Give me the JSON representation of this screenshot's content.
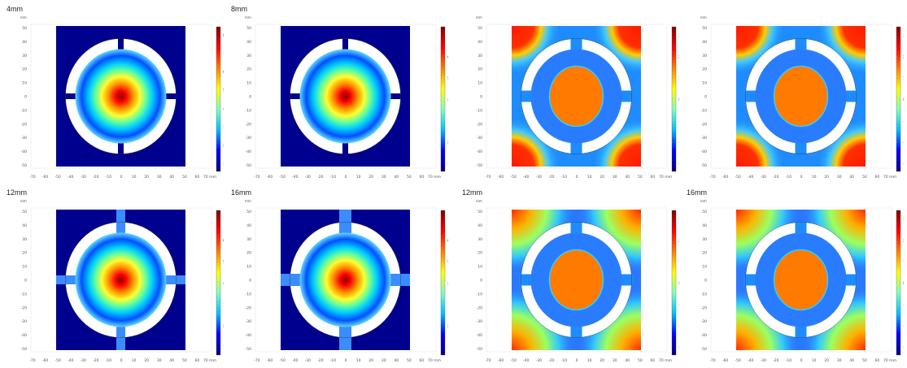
{
  "figure": {
    "panels": [
      {
        "title": "4mm",
        "field": "gaussian",
        "ring_extra": 0,
        "cb_ticks": [
          "8",
          "7",
          "6",
          "5",
          "4",
          "3",
          "2",
          "1"
        ],
        "unit": "mm",
        "x_ticks": [
          "-70",
          "-60",
          "-50",
          "-40",
          "-30",
          "-20",
          "-10",
          "0",
          "10",
          "20",
          "30",
          "40",
          "50",
          "60",
          "70"
        ],
        "y_ticks": [
          "50",
          "40",
          "30",
          "20",
          "10",
          "0",
          "-10",
          "-20",
          "-30",
          "-40",
          "-50"
        ]
      },
      {
        "title": "8mm",
        "field": "gaussian",
        "ring_extra": 0,
        "cb_ticks": [
          "7",
          "6",
          "5",
          "4",
          "3",
          "2",
          "1"
        ],
        "unit": "mm",
        "x_ticks": [
          "-70",
          "-60",
          "-50",
          "-40",
          "-30",
          "-20",
          "-10",
          "0",
          "10",
          "20",
          "30",
          "40",
          "50",
          "60",
          "70"
        ],
        "y_ticks": [
          "50",
          "40",
          "30",
          "20",
          "10",
          "0",
          "-10",
          "-20",
          "-30",
          "-40",
          "-50"
        ]
      },
      {
        "title": "",
        "field": "phase",
        "ring_extra": 0,
        "cb_ticks": [
          "3",
          "2",
          "1",
          "0",
          "-1",
          "-2",
          "-3"
        ],
        "unit": "mm",
        "x_ticks": [
          "-70",
          "-60",
          "-50",
          "-40",
          "-30",
          "-20",
          "-10",
          "0",
          "10",
          "20",
          "30",
          "40",
          "50",
          "60",
          "70"
        ],
        "y_ticks": [
          "50",
          "40",
          "30",
          "20",
          "10",
          "0",
          "-10",
          "-20",
          "-30",
          "-40",
          "-50"
        ]
      },
      {
        "title": "",
        "field": "phase",
        "ring_extra": 0,
        "cb_ticks": [
          "3",
          "2",
          "1",
          "0",
          "-1",
          "-2",
          "-3"
        ],
        "unit": "mm",
        "x_ticks": [
          "-70",
          "-60",
          "-50",
          "-40",
          "-30",
          "-20",
          "-10",
          "0",
          "10",
          "20",
          "30",
          "40",
          "50",
          "60",
          "70"
        ],
        "y_ticks": [
          "50",
          "40",
          "30",
          "20",
          "10",
          "0",
          "-10",
          "-20",
          "-30",
          "-40",
          "-50"
        ]
      },
      {
        "title": "12mm",
        "field": "gaussian",
        "ring_extra": 1,
        "cb_ticks": [
          "7",
          "6",
          "5",
          "4",
          "3",
          "2",
          "1"
        ],
        "unit": "mm",
        "x_ticks": [
          "-70",
          "-60",
          "-50",
          "-40",
          "-30",
          "-20",
          "-10",
          "0",
          "10",
          "20",
          "30",
          "40",
          "50",
          "60",
          "70"
        ],
        "y_ticks": [
          "50",
          "40",
          "30",
          "20",
          "10",
          "0",
          "-10",
          "-20",
          "-30",
          "-40",
          "-50"
        ]
      },
      {
        "title": "16mm",
        "field": "gaussian",
        "ring_extra": 2,
        "cb_ticks": [
          "7",
          "6",
          "5",
          "4",
          "3",
          "2",
          "1"
        ],
        "unit": "mm",
        "x_ticks": [
          "-70",
          "-60",
          "-50",
          "-40",
          "-30",
          "-20",
          "-10",
          "0",
          "10",
          "20",
          "30",
          "40",
          "50",
          "60",
          "70"
        ],
        "y_ticks": [
          "50",
          "40",
          "30",
          "20",
          "10",
          "0",
          "-10",
          "-20",
          "-30",
          "-40",
          "-50"
        ]
      },
      {
        "title": "12mm",
        "field": "smooth",
        "ring_extra": 0,
        "cb_ticks": [
          "3",
          "2",
          "1",
          "0",
          "-1",
          "-2",
          "-3"
        ],
        "unit": "mm",
        "x_ticks": [
          "-70",
          "-60",
          "-50",
          "-40",
          "-30",
          "-20",
          "-10",
          "0",
          "10",
          "20",
          "30",
          "40",
          "50",
          "60",
          "70"
        ],
        "y_ticks": [
          "50",
          "40",
          "30",
          "20",
          "10",
          "0",
          "-10",
          "-20",
          "-30",
          "-40",
          "-50"
        ]
      },
      {
        "title": "16mm",
        "field": "smooth",
        "ring_extra": 0,
        "cb_ticks": [
          "3",
          "2",
          "1",
          "0",
          "-1",
          "-2",
          "-3"
        ],
        "unit": "mm",
        "x_ticks": [
          "-70",
          "-60",
          "-50",
          "-40",
          "-30",
          "-20",
          "-10",
          "0",
          "10",
          "20",
          "30",
          "40",
          "50",
          "60",
          "70"
        ],
        "y_ticks": [
          "50",
          "40",
          "30",
          "20",
          "10",
          "0",
          "-10",
          "-20",
          "-30",
          "-40",
          "-50"
        ]
      }
    ],
    "colors": {
      "background": "#00008f",
      "ring": "#ffffff",
      "cb_stops": [
        "#00007f",
        "#0000ff",
        "#00bfff",
        "#7fffbf",
        "#ffff00",
        "#ff7f00",
        "#ff0000",
        "#7f0000"
      ]
    }
  }
}
